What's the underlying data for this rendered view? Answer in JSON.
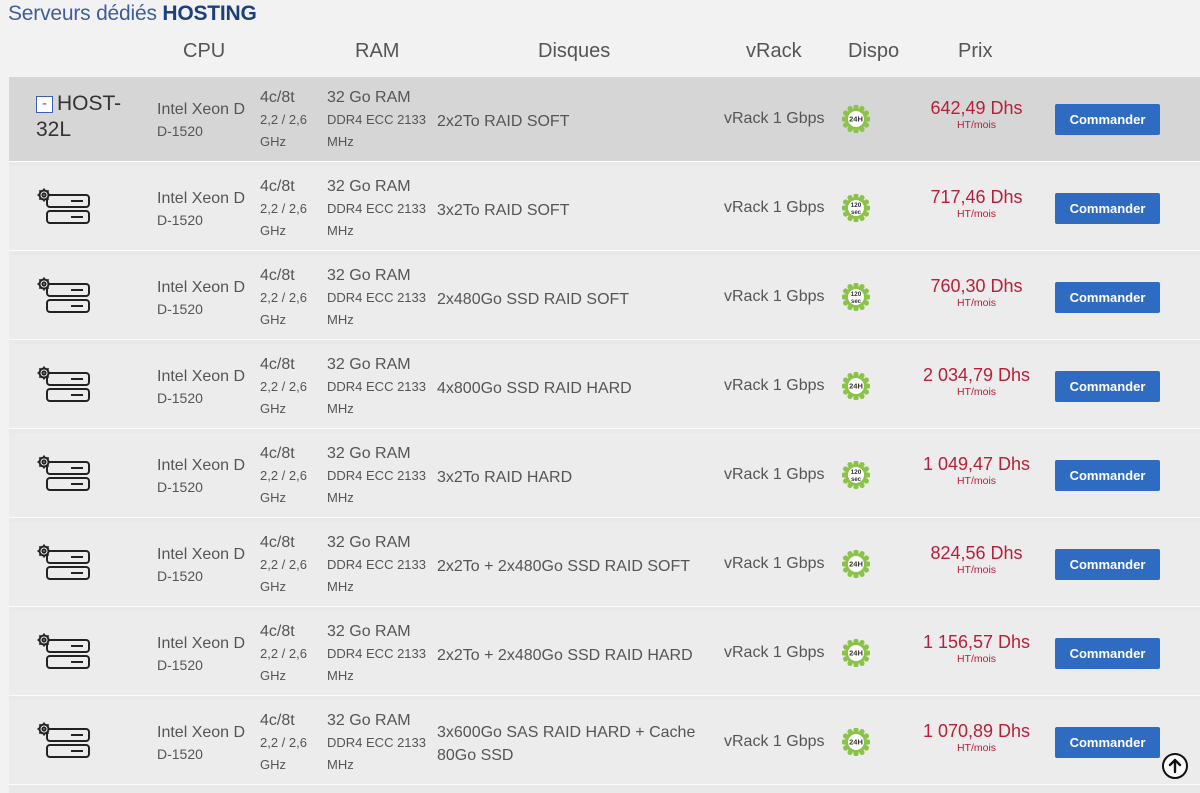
{
  "page": {
    "title_prefix": "Serveurs dédiés",
    "title_brand": "HOSTING"
  },
  "table": {
    "headers": {
      "cpu": "CPU",
      "ram": "RAM",
      "disks": "Disques",
      "vrack": "vRack",
      "dispo": "Dispo",
      "price": "Prix"
    },
    "colors": {
      "price": "#b8203a",
      "button": "#2f6bc1",
      "badge": "#8bc34a",
      "title": "#3e5e9a"
    },
    "rows": [
      {
        "name": "HOST-32L",
        "toggle": "-",
        "cpu": "Intel  Xeon D",
        "cpu_model": "D-1520",
        "cores": "4c/8t",
        "freq": "2,2 / 2,6",
        "ghz": "GHz",
        "ram": "32 Go RAM",
        "ram_type": "DDR4 ECC 2133",
        "mhz": "MHz",
        "disks": "2x2To   RAID SOFT",
        "vrack": "vRack 1 Gbps",
        "dispo": "24H",
        "price": "642,49 Dhs",
        "price_unit": "HT/mois",
        "button": "Commander"
      },
      {
        "icon": "server-config-icon",
        "cpu": "Intel  Xeon D",
        "cpu_model": "D-1520",
        "cores": "4c/8t",
        "freq": "2,2 / 2,6",
        "ghz": "GHz",
        "ram": "32 Go RAM",
        "ram_type": "DDR4 ECC 2133",
        "mhz": "MHz",
        "disks": "3x2To   RAID SOFT",
        "vrack": "vRack 1 Gbps",
        "dispo": "120 sec",
        "price": "717,46 Dhs",
        "price_unit": "HT/mois",
        "button": "Commander"
      },
      {
        "icon": "server-config-icon",
        "cpu": "Intel  Xeon D",
        "cpu_model": "D-1520",
        "cores": "4c/8t",
        "freq": "2,2 / 2,6",
        "ghz": "GHz",
        "ram": "32 Go RAM",
        "ram_type": "DDR4 ECC 2133",
        "mhz": "MHz",
        "disks": "2x480Go SSD   RAID SOFT",
        "vrack": "vRack 1 Gbps",
        "dispo": "120 sec",
        "price": "760,30 Dhs",
        "price_unit": "HT/mois",
        "button": "Commander"
      },
      {
        "icon": "server-config-icon",
        "cpu": "Intel  Xeon D",
        "cpu_model": "D-1520",
        "cores": "4c/8t",
        "freq": "2,2 / 2,6",
        "ghz": "GHz",
        "ram": "32 Go RAM",
        "ram_type": "DDR4 ECC 2133",
        "mhz": "MHz",
        "disks": "4x800Go SSD   RAID HARD",
        "vrack": "vRack 1 Gbps",
        "dispo": "24H",
        "price": "2 034,79 Dhs",
        "price_unit": "HT/mois",
        "button": "Commander"
      },
      {
        "icon": "server-config-icon",
        "cpu": "Intel  Xeon D",
        "cpu_model": "D-1520",
        "cores": "4c/8t",
        "freq": "2,2 / 2,6",
        "ghz": "GHz",
        "ram": "32 Go RAM",
        "ram_type": "DDR4 ECC 2133",
        "mhz": "MHz",
        "disks": "3x2To   RAID HARD",
        "vrack": "vRack 1 Gbps",
        "dispo": "120 sec",
        "price": "1 049,47 Dhs",
        "price_unit": "HT/mois",
        "button": "Commander"
      },
      {
        "icon": "server-config-icon",
        "cpu": "Intel  Xeon D",
        "cpu_model": "D-1520",
        "cores": "4c/8t",
        "freq": "2,2 / 2,6",
        "ghz": "GHz",
        "ram": "32 Go RAM",
        "ram_type": "DDR4 ECC 2133",
        "mhz": "MHz",
        "disks": "2x2To + 2x480Go SSD   RAID SOFT",
        "vrack": "vRack 1 Gbps",
        "dispo": "24H",
        "price": "824,56 Dhs",
        "price_unit": "HT/mois",
        "button": "Commander"
      },
      {
        "icon": "server-config-icon",
        "cpu": "Intel  Xeon D",
        "cpu_model": "D-1520",
        "cores": "4c/8t",
        "freq": "2,2 / 2,6",
        "ghz": "GHz",
        "ram": "32 Go RAM",
        "ram_type": "DDR4 ECC 2133",
        "mhz": "MHz",
        "disks": "2x2To + 2x480Go SSD   RAID HARD",
        "vrack": "vRack 1 Gbps",
        "dispo": "24H",
        "price": "1 156,57 Dhs",
        "price_unit": "HT/mois",
        "button": "Commander"
      },
      {
        "icon": "server-config-icon",
        "cpu": "Intel  Xeon D",
        "cpu_model": "D-1520",
        "cores": "4c/8t",
        "freq": "2,2 / 2,6",
        "ghz": "GHz",
        "ram": "32 Go RAM",
        "ram_type": "DDR4 ECC 2133",
        "mhz": "MHz",
        "disks": "3x600Go SAS   RAID HARD + Cache 80Go SSD",
        "vrack": "vRack 1 Gbps",
        "dispo": "24H",
        "price": "1 070,89 Dhs",
        "price_unit": "HT/mois",
        "button": "Commander"
      }
    ]
  },
  "scroll_top_icon": "arrow-up-circle-icon"
}
